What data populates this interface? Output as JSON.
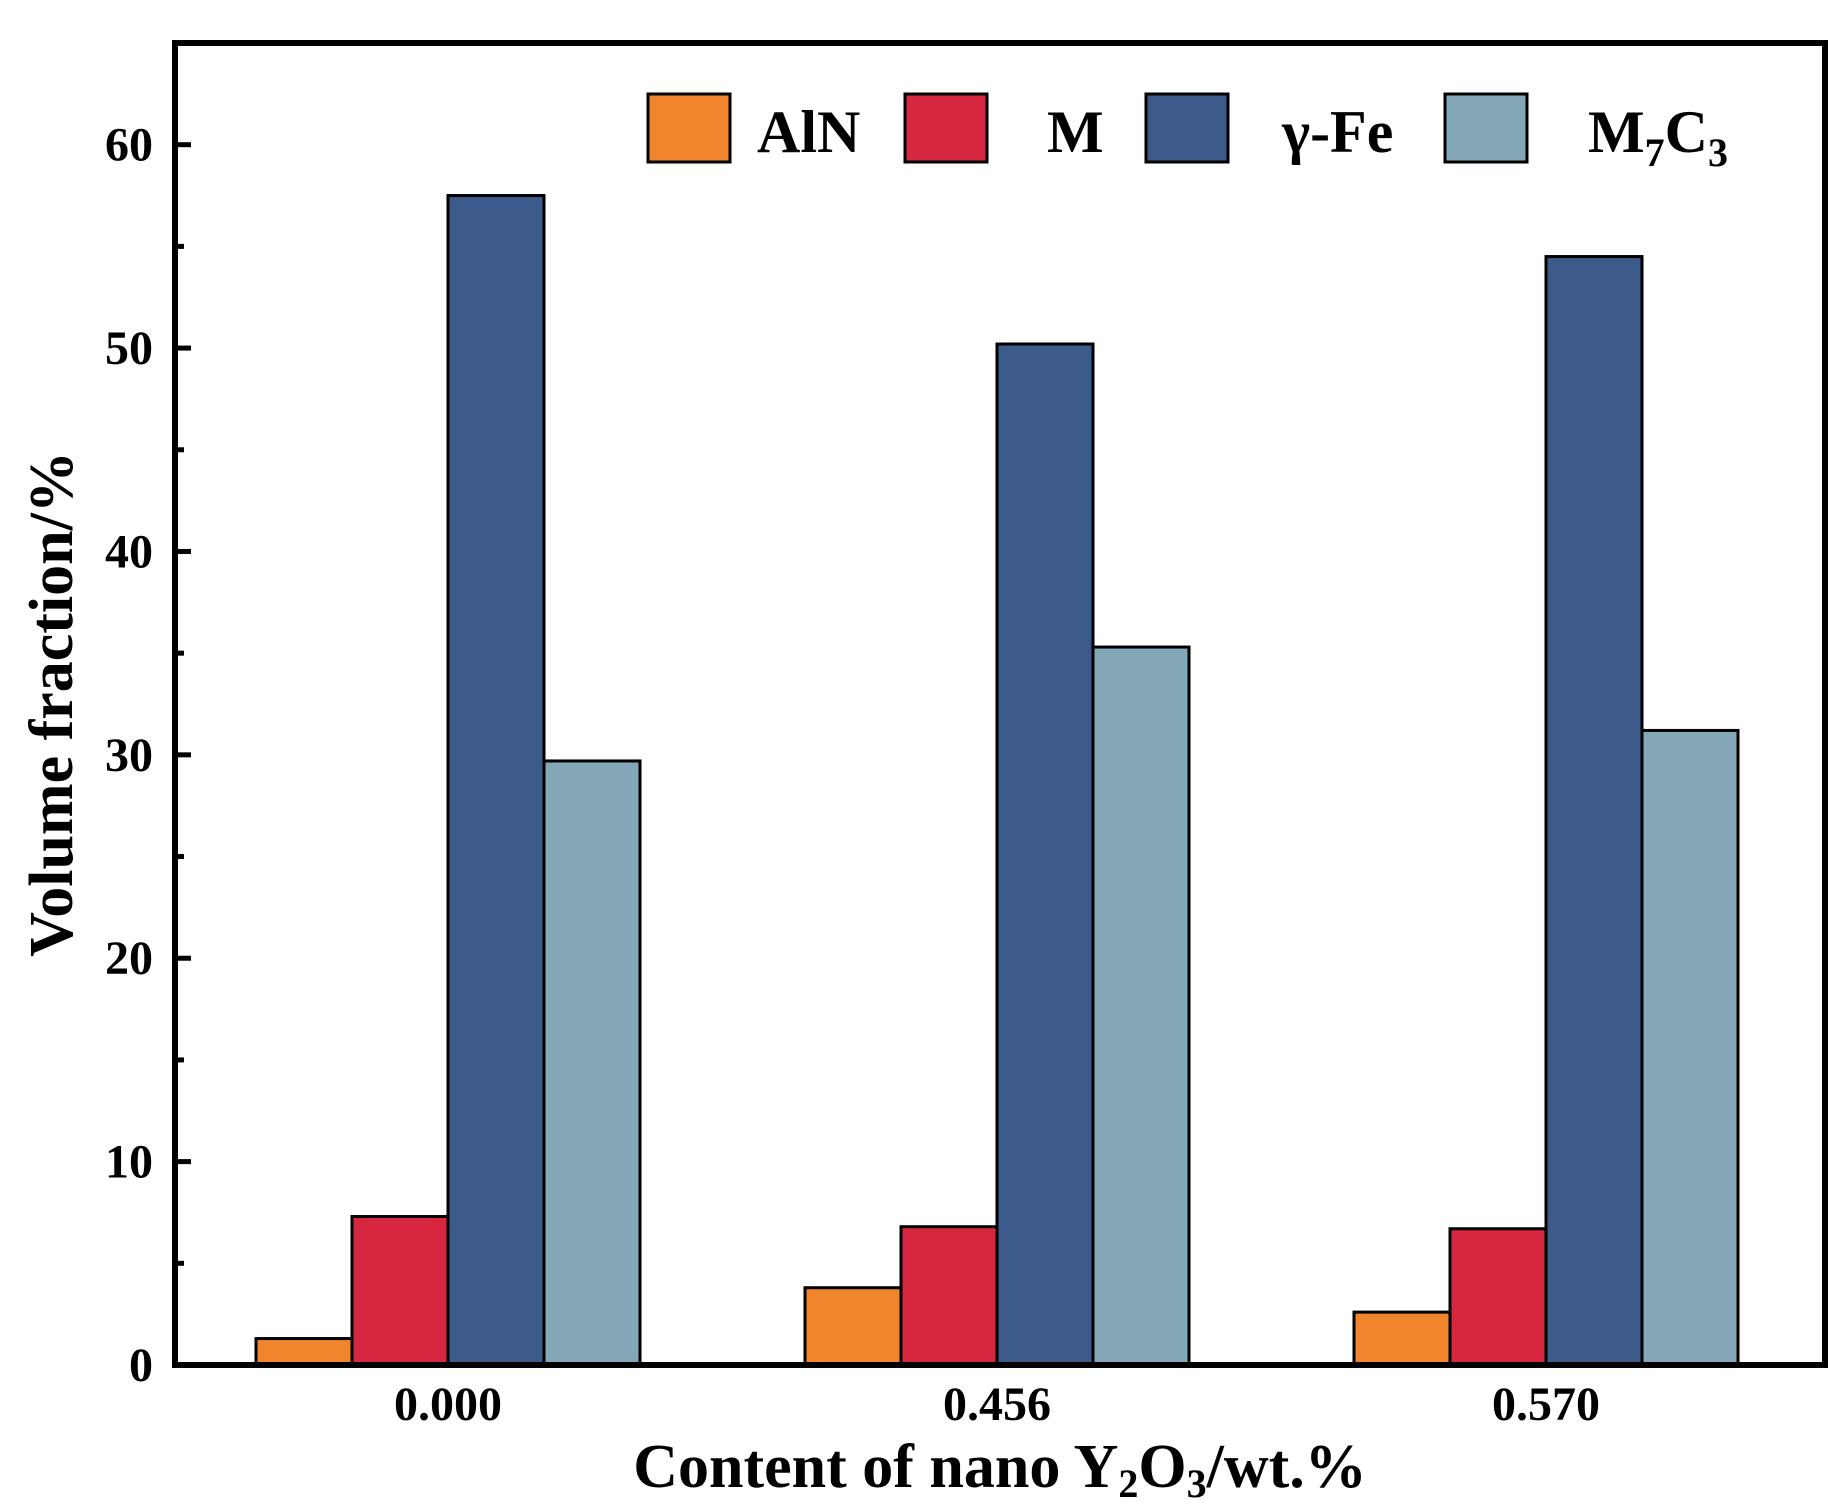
{
  "chart_data": {
    "type": "bar",
    "title": "",
    "xlabel": {
      "pre": "Content of nano Y",
      "sub1": "2",
      "mid": "O",
      "sub2": "3",
      "post": "/wt.%"
    },
    "ylabel": "Volume fraction/%",
    "categories": [
      "0.000",
      "0.456",
      "0.570"
    ],
    "ylim": [
      0,
      65
    ],
    "yticks": [
      0,
      10,
      20,
      30,
      40,
      50,
      60
    ],
    "ytick_labels": [
      "0",
      "10",
      "20",
      "30",
      "40",
      "50",
      "60"
    ],
    "minor_ticks": true,
    "grid": false,
    "legend_position": "top-right",
    "series": [
      {
        "name": "AlN",
        "color": "#F0852D",
        "values": [
          1.3,
          3.8,
          2.6
        ]
      },
      {
        "name": "M",
        "color": "#D7263F",
        "values": [
          7.3,
          6.8,
          6.7
        ]
      },
      {
        "name": "γ-Fe",
        "color": "#3C5A8A",
        "values": [
          57.5,
          50.2,
          54.5
        ]
      },
      {
        "name": {
          "pre": "M",
          "sub1": "7",
          "mid": "C",
          "sub2": "3"
        },
        "color": "#84A7B8",
        "values": [
          29.7,
          35.3,
          31.2
        ]
      }
    ]
  }
}
